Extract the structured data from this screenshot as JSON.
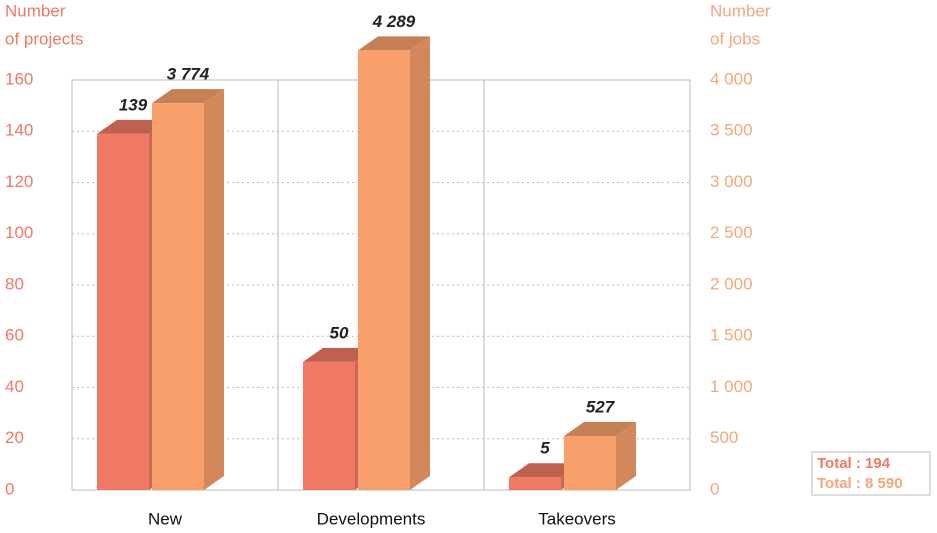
{
  "chart_data": {
    "type": "bar",
    "categories": [
      "New",
      "Developments",
      "Takeovers"
    ],
    "series": [
      {
        "color": "#ef7965",
        "values": [
          139,
          50,
          5
        ]
      },
      {
        "color": "#f8a06c",
        "values": [
          3774,
          4289,
          527
        ],
        "value_labels": [
          "3 774",
          "4 289",
          "527"
        ],
        "axis": "y2"
      }
    ],
    "y_label": [
      "Number",
      "of projects"
    ],
    "y2_label": [
      "Number",
      "of jobs"
    ],
    "ylim": [
      0,
      160
    ],
    "yticks": [
      0,
      20,
      40,
      60,
      80,
      100,
      120,
      140,
      160
    ],
    "y2lim": [
      0,
      4000
    ],
    "y2ticks": [
      0,
      500,
      {
        "value": 1000,
        "label": "1 000"
      },
      {
        "value": 1500,
        "label": "1 500"
      },
      {
        "value": 2000,
        "label": "2 000"
      },
      {
        "value": 2500,
        "label": "2 500"
      },
      {
        "value": 3000,
        "label": "3 000"
      },
      {
        "value": 3500,
        "label": "3 500"
      },
      {
        "value": 4000,
        "label": "4 000"
      }
    ],
    "grid": true,
    "totals": [
      "Total : 194",
      "Total : 8 590"
    ]
  }
}
